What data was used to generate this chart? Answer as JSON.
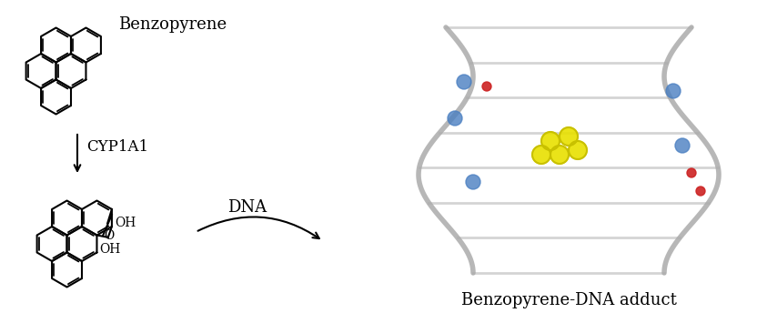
{
  "title": "",
  "background_color": "#ffffff",
  "benzopyrene_label": "Benzopyrene",
  "cyp1a1_label": "CYP1A1",
  "dna_label": "DNA",
  "adduct_label": "Benzopyrene-DNA adduct",
  "label_fontsize": 13,
  "small_label_fontsize": 12,
  "arrow_color": "#000000",
  "structure_color": "#000000",
  "dna_image_placeholder": true,
  "fig_width": 8.43,
  "fig_height": 3.55
}
